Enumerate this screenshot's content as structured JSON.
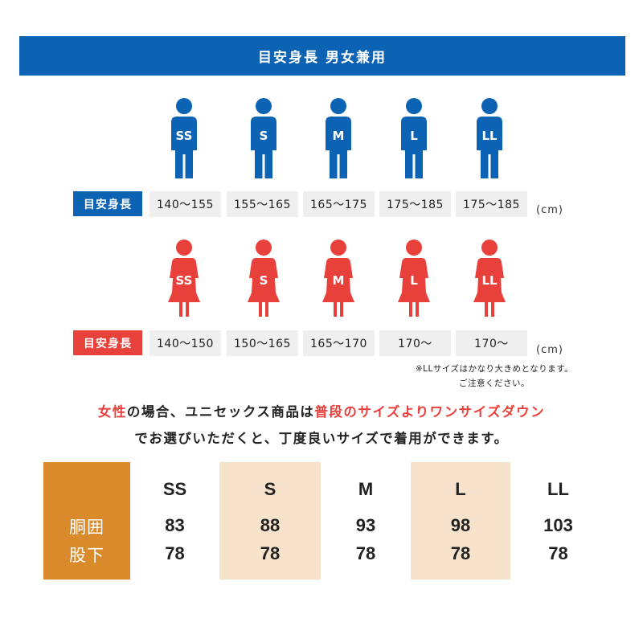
{
  "banner": {
    "title": "目安身長 男女兼用"
  },
  "colors": {
    "male": "#0d63b3",
    "female": "#e8413c",
    "chart_header": "#d98a2b",
    "chart_shade": "#f7e2cb",
    "cell_bg": "#efefef"
  },
  "male": {
    "icon": "male-person-icon",
    "sizes": [
      "SS",
      "S",
      "M",
      "L",
      "LL"
    ],
    "label": "目安身長",
    "heights": [
      "140〜155",
      "155〜165",
      "165〜175",
      "175〜185",
      "175〜185"
    ],
    "unit": "(cm)"
  },
  "female": {
    "icon": "female-person-icon",
    "sizes": [
      "SS",
      "S",
      "M",
      "L",
      "LL"
    ],
    "label": "目安身長",
    "heights": [
      "140〜150",
      "150〜165",
      "165〜170",
      "170〜",
      "170〜"
    ],
    "unit": "(cm)"
  },
  "note": {
    "line1": "※LLサイズはかなり大きめとなります。",
    "line2": "ご注意ください。"
  },
  "advice": {
    "line1": [
      {
        "text": "女性",
        "red": true
      },
      {
        "text": "の場合、ユニセックス商品は",
        "red": false
      },
      {
        "text": "普段のサイズよりワンサイズダウン",
        "red": true
      }
    ],
    "line2": "でお選びいただくと、丁度良いサイズで着用ができます。"
  },
  "size_chart": {
    "row_labels": [
      "胴囲",
      "股下"
    ],
    "columns": [
      {
        "size": "SS",
        "waist": "83",
        "inseam": "78",
        "shaded": false
      },
      {
        "size": "S",
        "waist": "88",
        "inseam": "78",
        "shaded": true
      },
      {
        "size": "M",
        "waist": "93",
        "inseam": "78",
        "shaded": false
      },
      {
        "size": "L",
        "waist": "98",
        "inseam": "78",
        "shaded": true
      },
      {
        "size": "LL",
        "waist": "103",
        "inseam": "78",
        "shaded": false
      }
    ]
  }
}
